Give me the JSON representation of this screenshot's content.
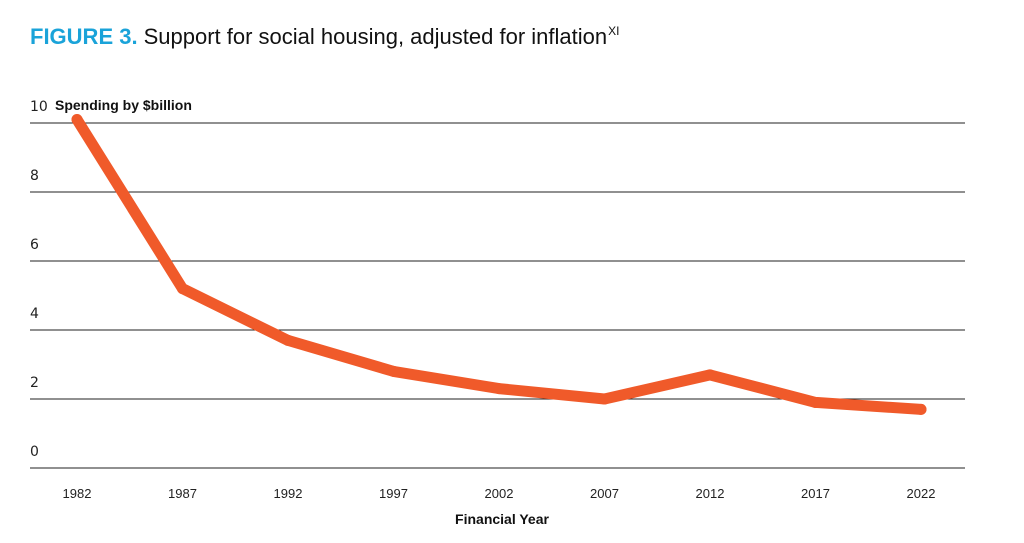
{
  "header": {
    "figure_label": "FIGURE 3.",
    "title_text": "Support for social housing, adjusted for inflation",
    "footnote_marker": "XI"
  },
  "colors": {
    "figure_label": "#1aa3d9",
    "line": "#f05a2a",
    "gridline": "#222222"
  },
  "chart_data": {
    "type": "line",
    "title": "Support for social housing, adjusted for inflation",
    "xlabel": "Financial Year",
    "ylabel": "Spending by $billion",
    "categories": [
      "1982",
      "1987",
      "1992",
      "1997",
      "2002",
      "2007",
      "2012",
      "2017",
      "2022"
    ],
    "series": [
      {
        "values": [
          10.1,
          5.2,
          3.7,
          2.8,
          2.3,
          2.0,
          2.7,
          1.9,
          1.7
        ]
      }
    ],
    "ylim": [
      0,
      10
    ],
    "yticks": [
      10,
      8,
      6,
      4,
      2,
      0
    ],
    "grid": true,
    "legend": "none"
  }
}
